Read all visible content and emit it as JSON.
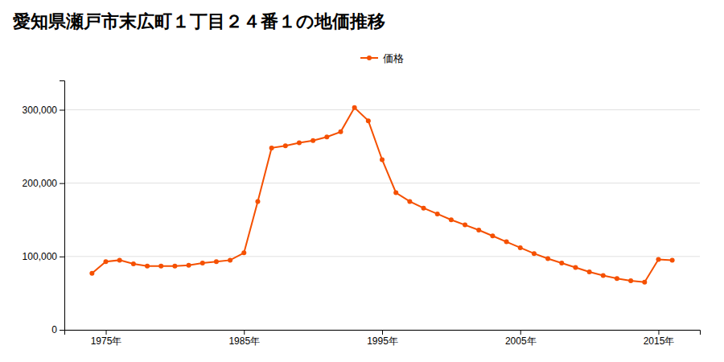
{
  "chart_data": {
    "type": "line",
    "title": "愛知県瀬戸市末広町１丁目２４番１の地価推移",
    "x": [
      1974,
      1975,
      1976,
      1977,
      1978,
      1979,
      1980,
      1981,
      1982,
      1983,
      1984,
      1985,
      1986,
      1987,
      1988,
      1989,
      1990,
      1991,
      1992,
      1993,
      1994,
      1995,
      1996,
      1997,
      1998,
      1999,
      2000,
      2001,
      2002,
      2003,
      2004,
      2005,
      2006,
      2007,
      2008,
      2009,
      2010,
      2011,
      2012,
      2013,
      2014,
      2015,
      2016
    ],
    "series": [
      {
        "name": "価格",
        "color": "#f55000",
        "marker": "circle",
        "values": [
          77000,
          93000,
          95000,
          90000,
          87000,
          87000,
          87000,
          88000,
          91000,
          93000,
          95000,
          105000,
          175000,
          248000,
          251000,
          255000,
          258000,
          263000,
          270000,
          303000,
          285000,
          232000,
          187000,
          175000,
          166000,
          158000,
          150000,
          143000,
          136000,
          128000,
          120000,
          112000,
          104000,
          97000,
          91000,
          85000,
          79000,
          74000,
          70000,
          67000,
          65000,
          96000,
          95000
        ]
      }
    ],
    "xlim": [
      1972,
      2018
    ],
    "xticks": [
      {
        "value": 1975,
        "label": "1975年"
      },
      {
        "value": 1985,
        "label": "1985年"
      },
      {
        "value": 1995,
        "label": "1995年"
      },
      {
        "value": 2005,
        "label": "2005年"
      },
      {
        "value": 2015,
        "label": "2015年"
      }
    ],
    "ylim": [
      0,
      340000
    ],
    "yticks": [
      0,
      {
        "value": 100000,
        "label": "100,000"
      },
      {
        "value": 200000,
        "label": "200,000"
      },
      {
        "value": 300000,
        "label": "300,000"
      }
    ],
    "grid": true,
    "legend": "top"
  }
}
